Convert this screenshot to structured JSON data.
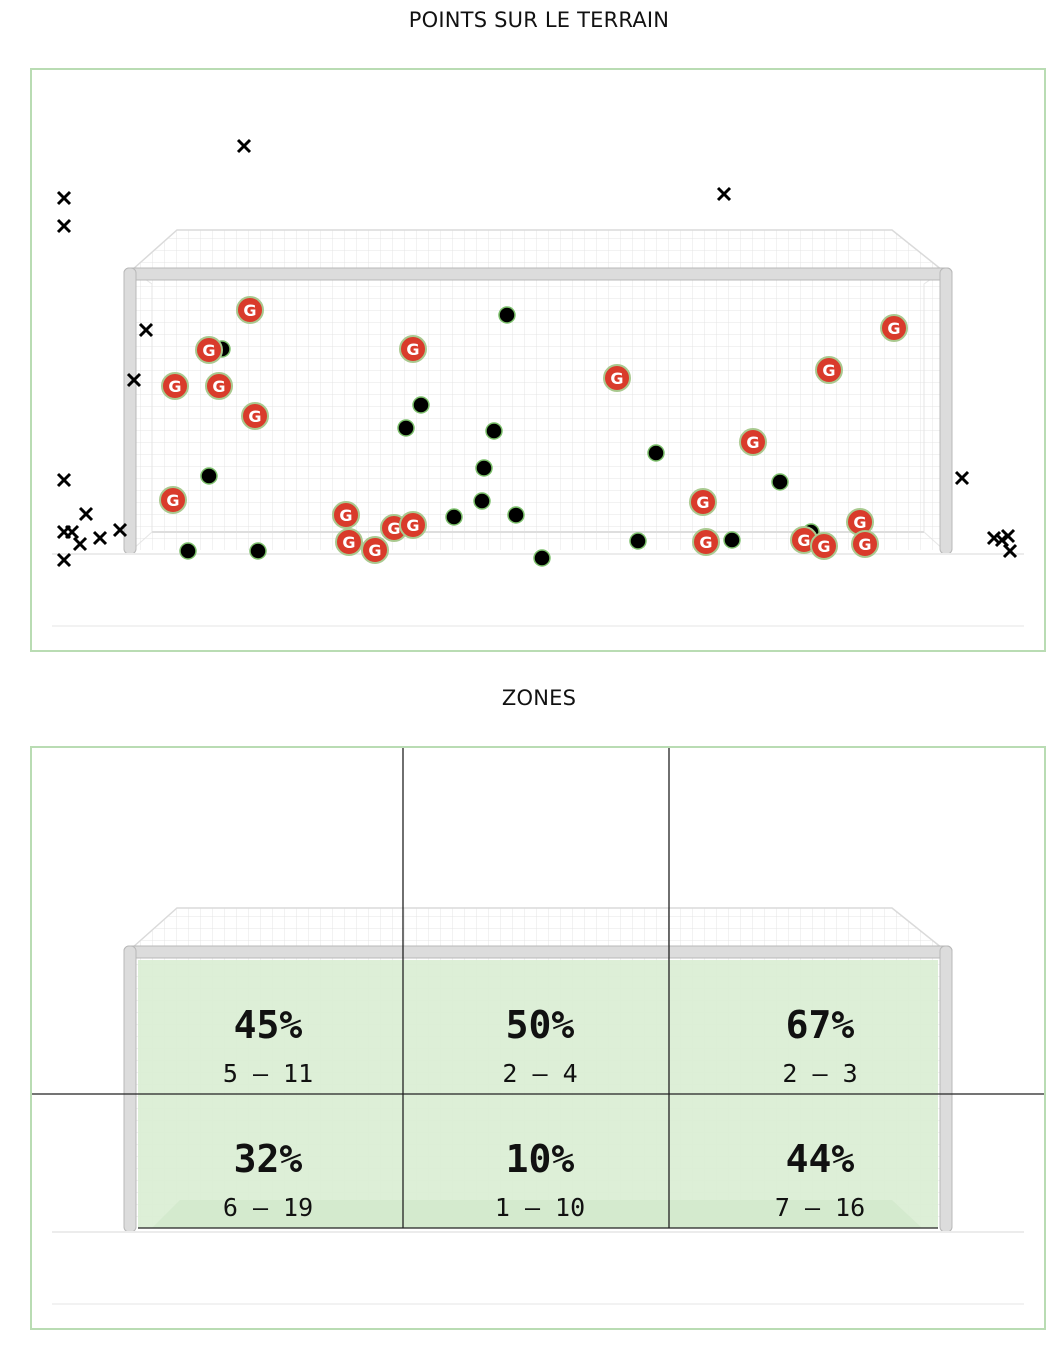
{
  "titles": {
    "points": "POINTS SUR LE TERRAIN",
    "zones": "ZONES"
  },
  "marker_label": "G",
  "colors": {
    "panel_border": "#b9dcb3",
    "goal_marker": "#d93b2b",
    "zone_fill": "#d9edd3",
    "save_marker": "#000000",
    "miss_marker": "#000000"
  },
  "chart_data": [
    {
      "type": "scatter",
      "title": "POINTS SUR LE TERRAIN",
      "xlim": [
        0,
        1016
      ],
      "ylim": [
        0,
        584
      ],
      "series": [
        {
          "kind": "goal",
          "points": [
            [
              218,
              240
            ],
            [
              177,
              280
            ],
            [
              143,
              316
            ],
            [
              187,
              316
            ],
            [
              223,
              346
            ],
            [
              141,
              430
            ],
            [
              381,
              279
            ],
            [
              585,
              308
            ],
            [
              314,
              445
            ],
            [
              317,
              472
            ],
            [
              343,
              480
            ],
            [
              362,
              458
            ],
            [
              381,
              455
            ],
            [
              797,
              300
            ],
            [
              862,
              258
            ],
            [
              721,
              372
            ],
            [
              671,
              432
            ],
            [
              674,
              472
            ],
            [
              772,
              470
            ],
            [
              792,
              476
            ],
            [
              828,
              452
            ],
            [
              833,
              474
            ]
          ]
        },
        {
          "kind": "save",
          "points": [
            [
              190,
              279
            ],
            [
              475,
              245
            ],
            [
              389,
              335
            ],
            [
              374,
              358
            ],
            [
              462,
              361
            ],
            [
              452,
              398
            ],
            [
              177,
              406
            ],
            [
              450,
              431
            ],
            [
              422,
              447
            ],
            [
              484,
              445
            ],
            [
              156,
              481
            ],
            [
              226,
              481
            ],
            [
              510,
              488
            ],
            [
              606,
              471
            ],
            [
              624,
              383
            ],
            [
              700,
              470
            ],
            [
              748,
              412
            ],
            [
              779,
              462
            ],
            [
              360,
              462
            ]
          ]
        },
        {
          "kind": "miss",
          "points": [
            [
              212,
              76
            ],
            [
              32,
              128
            ],
            [
              32,
              156
            ],
            [
              114,
              260
            ],
            [
              102,
              310
            ],
            [
              32,
              410
            ],
            [
              54,
              444
            ],
            [
              32,
              462
            ],
            [
              40,
              462
            ],
            [
              88,
              460
            ],
            [
              68,
              468
            ],
            [
              48,
              474
            ],
            [
              32,
              490
            ],
            [
              692,
              124
            ],
            [
              930,
              408
            ],
            [
              962,
              468
            ],
            [
              970,
              470
            ],
            [
              976,
              466
            ],
            [
              978,
              481
            ]
          ]
        }
      ]
    },
    {
      "type": "table",
      "title": "ZONES",
      "rows": 2,
      "cols": 3,
      "cells": [
        {
          "pct": "45%",
          "score": "5 – 11"
        },
        {
          "pct": "50%",
          "score": "2 – 4"
        },
        {
          "pct": "67%",
          "score": "2 – 3"
        },
        {
          "pct": "32%",
          "score": "6 – 19"
        },
        {
          "pct": "10%",
          "score": "1 – 10"
        },
        {
          "pct": "44%",
          "score": "7 – 16"
        }
      ]
    }
  ]
}
